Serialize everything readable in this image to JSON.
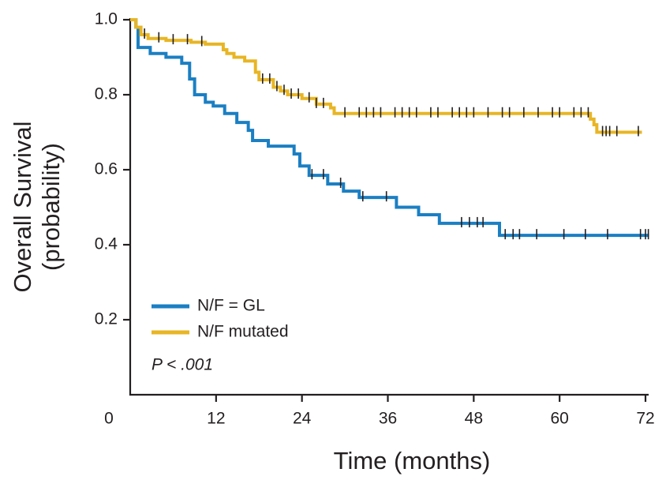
{
  "chart_data": {
    "type": "step",
    "xlabel": "Time (months)",
    "ylabel": [
      "Overall Survival",
      "(probability)"
    ],
    "annotation": "P < .001",
    "xlim": [
      0,
      72
    ],
    "ylim": [
      0,
      1
    ],
    "xticks": [
      0,
      12,
      24,
      36,
      48,
      60,
      72
    ],
    "yticks": [
      {
        "value": 0.2,
        "label": "0.2"
      },
      {
        "value": 0.4,
        "label": "0.4"
      },
      {
        "value": 0.6,
        "label": "0.6"
      },
      {
        "value": 0.8,
        "label": "0.8"
      },
      {
        "value": 1.0,
        "label": "1.0"
      }
    ],
    "legend": "lower left",
    "series": [
      {
        "name": "N/F = GL",
        "color": "#1b7fc3",
        "x": [
          0,
          0.8,
          1.1,
          2.8,
          5,
          7.2,
          8.3,
          9,
          10.5,
          11.6,
          13.2,
          14.9,
          16.5,
          17.1,
          19.3,
          22.9,
          23.7,
          25,
          27.6,
          29.8,
          32,
          37.2,
          40.3,
          43.2,
          51.6,
          72.5
        ],
        "values": [
          1.0,
          0.98,
          0.926,
          0.91,
          0.9,
          0.884,
          0.842,
          0.8,
          0.78,
          0.77,
          0.75,
          0.726,
          0.705,
          0.678,
          0.663,
          0.642,
          0.61,
          0.585,
          0.562,
          0.543,
          0.526,
          0.5,
          0.48,
          0.457,
          0.425,
          0.425
        ],
        "censored": [
          25.4,
          27,
          29.4,
          32.5,
          35.8,
          46.3,
          47.4,
          48.5,
          49.3,
          52.4,
          53.5,
          54.4,
          56.8,
          60.6,
          63.6,
          66.7,
          71.3,
          72,
          72.4
        ]
      },
      {
        "name": "N/F mutated",
        "color": "#e8b524",
        "x": [
          0,
          0.8,
          1.5,
          2.5,
          5,
          8.5,
          10.5,
          13,
          13.5,
          14.5,
          16,
          17.5,
          18,
          20,
          21,
          22,
          24,
          26,
          28,
          28.5,
          64.3,
          64.8,
          65.2,
          71.5
        ],
        "values": [
          1.0,
          0.98,
          0.96,
          0.95,
          0.945,
          0.94,
          0.935,
          0.92,
          0.91,
          0.9,
          0.89,
          0.86,
          0.84,
          0.82,
          0.81,
          0.8,
          0.79,
          0.775,
          0.765,
          0.75,
          0.735,
          0.72,
          0.7,
          0.7
        ],
        "censored": [
          2,
          4,
          6,
          8,
          10,
          18.5,
          19.5,
          20.5,
          21.5,
          22.5,
          23.5,
          25,
          26,
          27,
          30,
          32,
          33,
          34,
          35,
          37,
          38,
          39,
          40,
          42,
          43,
          45,
          46,
          47,
          48,
          50,
          52,
          53,
          55,
          57,
          59,
          60,
          62,
          63,
          64,
          66,
          66.5,
          67,
          68,
          71
        ]
      }
    ]
  }
}
